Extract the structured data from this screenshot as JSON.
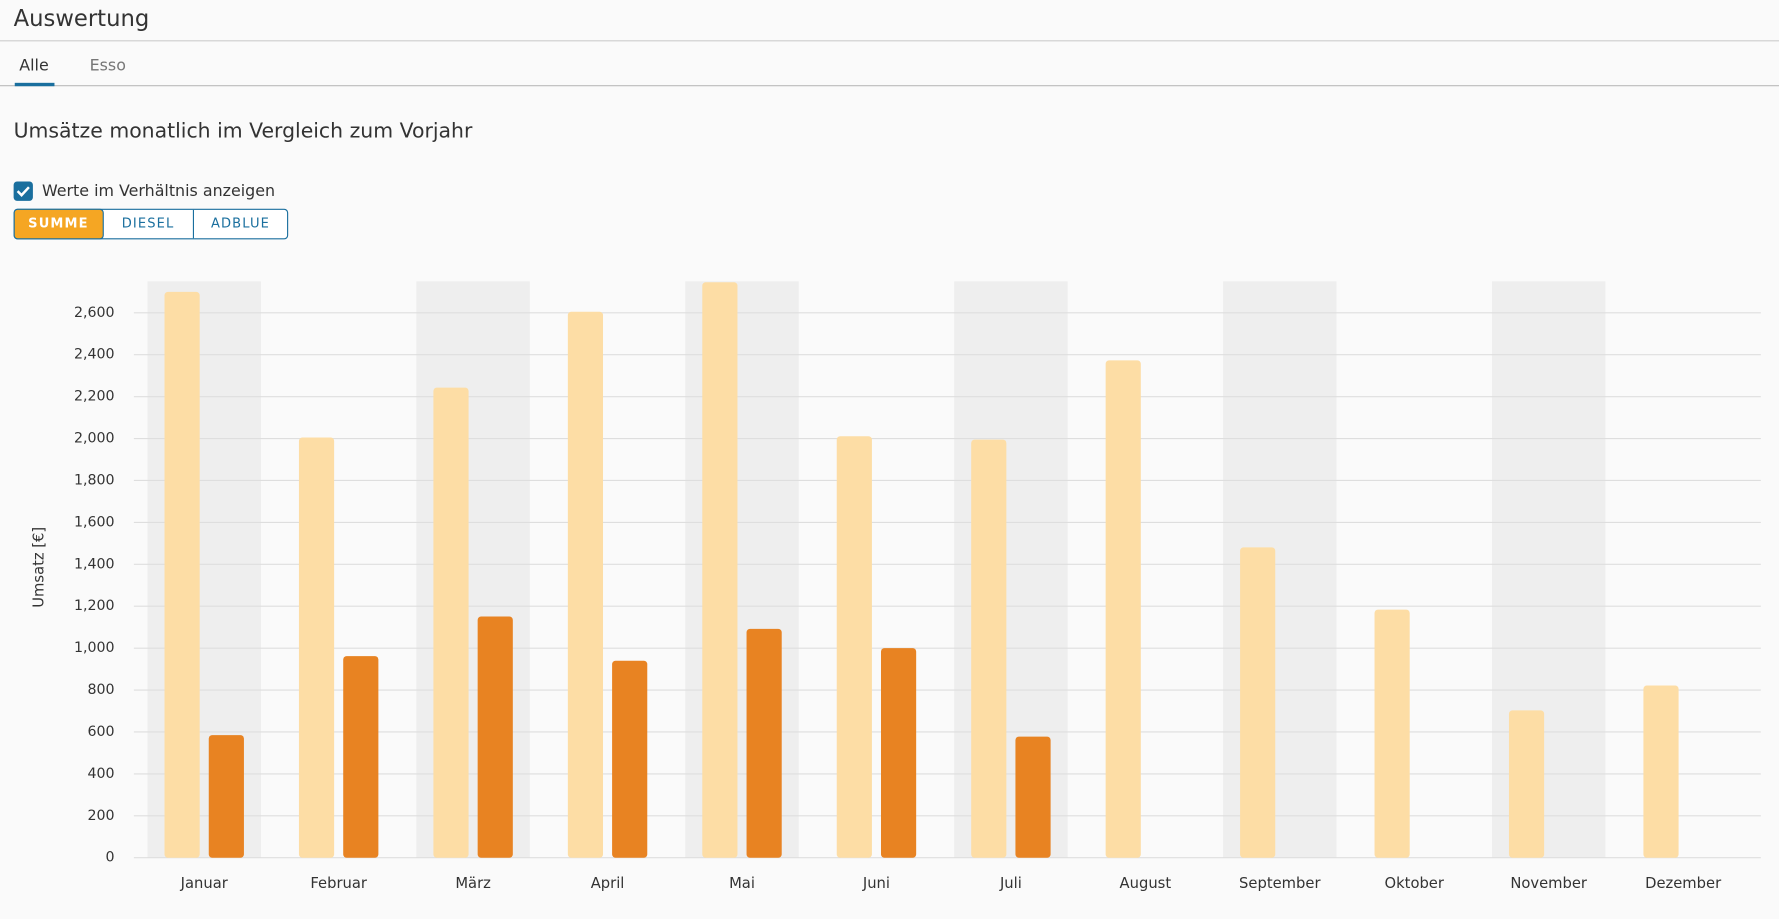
{
  "ui": {
    "title": "Auswertung",
    "tabs": [
      "Alle",
      "Esso"
    ],
    "checkbox_label": "Werte im Verhältnis anzeigen",
    "buttons": [
      "SUMME",
      "DIESEL",
      "ADBLUE"
    ]
  },
  "chart_data": {
    "type": "bar",
    "title": "Umsätze monatlich im Vergleich zum Vorjahr",
    "y_label": "Umsatz [€]",
    "categories": [
      "Januar",
      "Februar",
      "März",
      "April",
      "Mai",
      "Juni",
      "Juli",
      "August",
      "September",
      "Oktober",
      "November",
      "Dezember"
    ],
    "series": [
      {
        "color": "#fddda5",
        "values": [
          2700,
          2005,
          2243,
          2605,
          2746,
          2011,
          1995,
          2373,
          1481,
          1184,
          703,
          822
        ]
      },
      {
        "color": "#e88322",
        "values": [
          585,
          962,
          1151,
          940,
          1092,
          1000,
          578,
          null,
          null,
          null,
          null,
          null
        ]
      }
    ],
    "ylim": [
      0,
      2750
    ],
    "yticks": [
      0,
      200,
      400,
      600,
      800,
      {
        "value": 1000,
        "label": "1,000"
      },
      {
        "value": 1200,
        "label": "1,200"
      },
      {
        "value": 1400,
        "label": "1,400"
      },
      {
        "value": 1600,
        "label": "1,600"
      },
      {
        "value": 1800,
        "label": "1,800"
      },
      {
        "value": 2000,
        "label": "2,000"
      },
      {
        "value": 2200,
        "label": "2,200"
      },
      {
        "value": 2400,
        "label": "2,400"
      },
      {
        "value": 2600,
        "label": "2,600"
      }
    ],
    "grid": true
  }
}
